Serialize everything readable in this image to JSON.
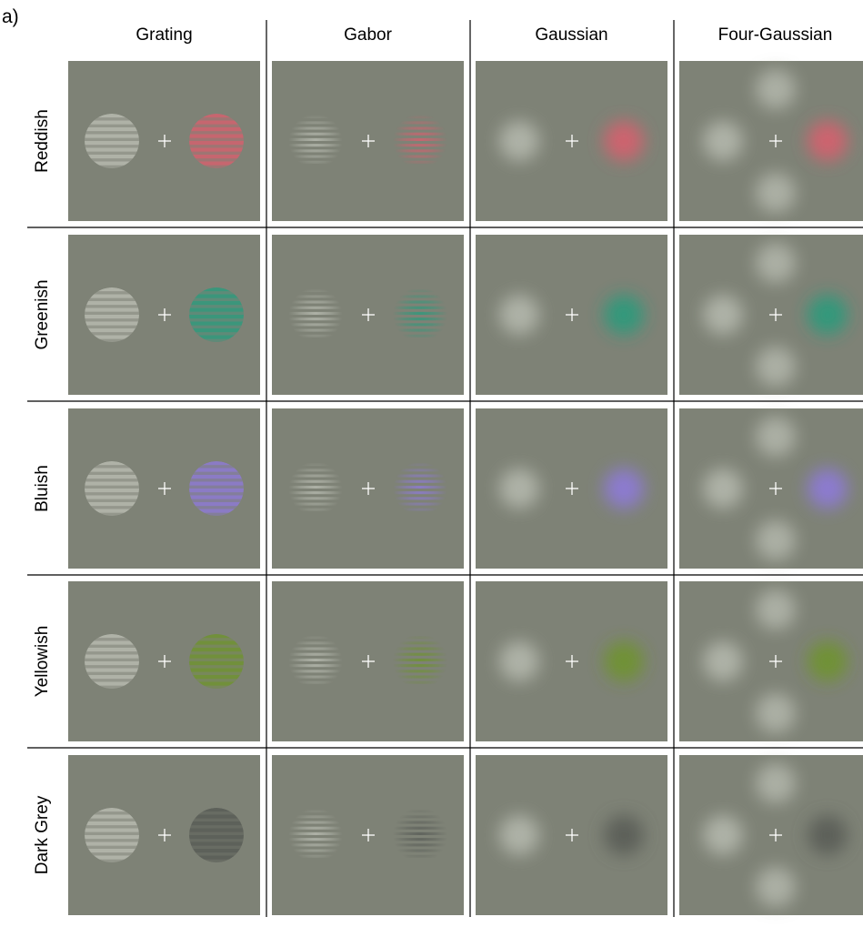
{
  "panel_label": "a)",
  "columns": [
    "Grating",
    "Gabor",
    "Gaussian",
    "Four-Gaussian"
  ],
  "rows": [
    {
      "label": "Reddish",
      "color": "#d2626e"
    },
    {
      "label": "Greenish",
      "color": "#2f9a7c"
    },
    {
      "label": "Bluish",
      "color": "#8d7ad4"
    },
    {
      "label": "Yellowish",
      "color": "#6f9331"
    },
    {
      "label": "Dark Grey",
      "color": "#5c5f59"
    }
  ],
  "colors": {
    "background": "#7e8276",
    "reference_stimulus": "#b7bbb0",
    "fixation_cross": "#ffffff",
    "grid_line": "#000000"
  },
  "stimulus": {
    "stripes_per_grating": 8,
    "gabor_stripes": 9
  }
}
